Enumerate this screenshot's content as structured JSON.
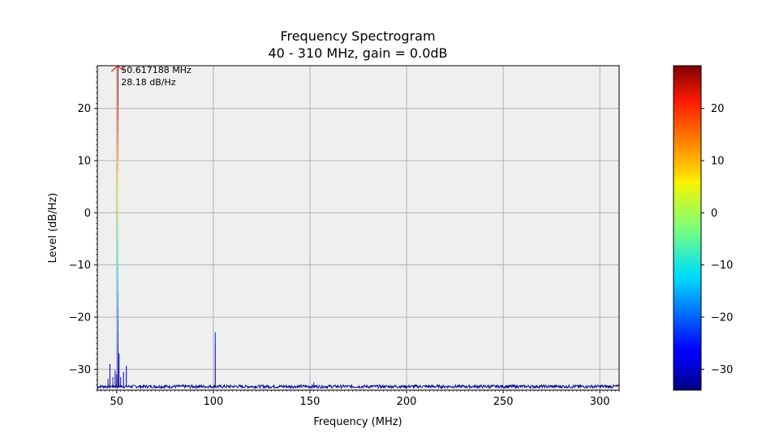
{
  "chart_data": {
    "type": "line",
    "title": "Frequency Spectrogram",
    "subtitle": "40 - 310 MHz, gain = 0.0dB",
    "xlabel": "Frequency (MHz)",
    "ylabel": "Level (dB/Hz)",
    "xlim": [
      40,
      310
    ],
    "ylim": [
      -34,
      28.2
    ],
    "xticks": [
      50,
      100,
      150,
      200,
      250,
      300
    ],
    "xtick_labels": [
      "50",
      "100",
      "150",
      "200",
      "250",
      "300"
    ],
    "yticks": [
      -30,
      -20,
      -10,
      0,
      10,
      20
    ],
    "ytick_labels": [
      "−30",
      "−20",
      "−10",
      "0",
      "10",
      "20"
    ],
    "grid": true,
    "background_color": "#efefef",
    "noise_floor_db": -33.3,
    "series": [
      {
        "x": [
          45.5,
          46.5,
          48.0,
          49.2,
          50.0,
          50.617188,
          51.2,
          52.0,
          53.5,
          55.0,
          101.0,
          152.0
        ],
        "y": [
          -31.8,
          -29.0,
          -31.5,
          -30.2,
          -31.0,
          28.18,
          -27.0,
          -31.5,
          -30.5,
          -29.3,
          -22.9,
          -32.5
        ]
      }
    ],
    "peak_annotation": {
      "frequency": "50.617188 MHz",
      "level": "28.18 dB/Hz",
      "x": 50.617188,
      "y": 28.18,
      "marker_color": "#e8212b"
    },
    "colorbar": {
      "cmap": "jet",
      "range": [
        -34,
        28.2
      ],
      "ticks": [
        -30,
        -20,
        -10,
        0,
        10,
        20
      ],
      "tick_labels": [
        "−30",
        "−20",
        "−10",
        "0",
        "10",
        "20"
      ]
    }
  }
}
